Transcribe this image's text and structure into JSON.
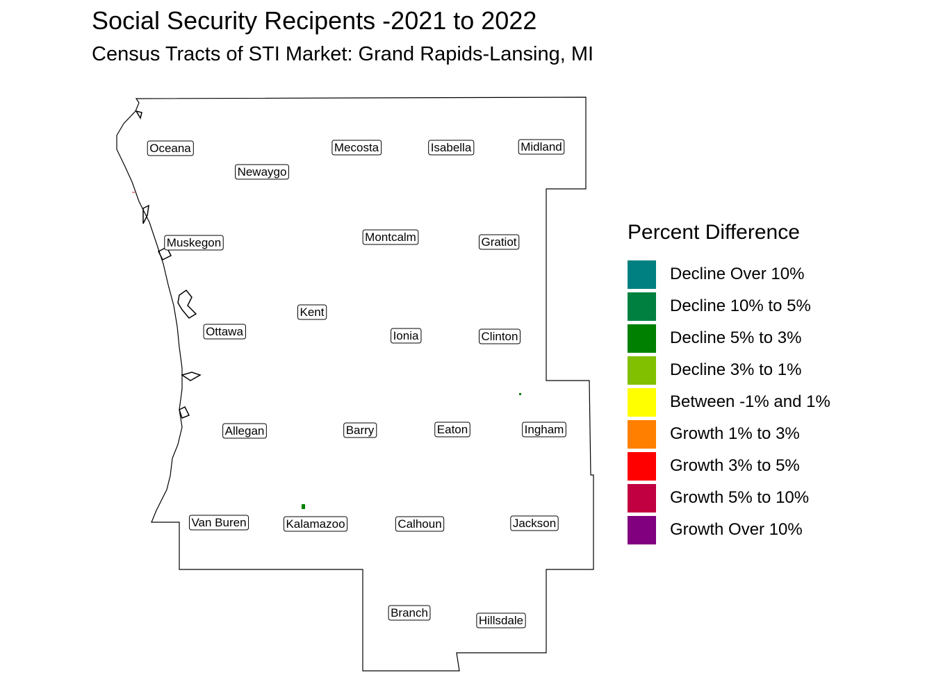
{
  "title": "Social Security Recipents -2021 to 2022",
  "subtitle": "Census Tracts of STI Market: Grand Rapids-Lansing, MI",
  "counties": [
    {
      "id": "oceana",
      "name": "Oceana"
    },
    {
      "id": "newaygo",
      "name": "Newaygo"
    },
    {
      "id": "mecosta",
      "name": "Mecosta"
    },
    {
      "id": "isabella",
      "name": "Isabella"
    },
    {
      "id": "midland",
      "name": "Midland"
    },
    {
      "id": "muskegon",
      "name": "Muskegon"
    },
    {
      "id": "montcalm",
      "name": "Montcalm"
    },
    {
      "id": "gratiot",
      "name": "Gratiot"
    },
    {
      "id": "kent",
      "name": "Kent"
    },
    {
      "id": "ottawa",
      "name": "Ottawa"
    },
    {
      "id": "ionia",
      "name": "Ionia"
    },
    {
      "id": "clinton",
      "name": "Clinton"
    },
    {
      "id": "allegan",
      "name": "Allegan"
    },
    {
      "id": "barry",
      "name": "Barry"
    },
    {
      "id": "eaton",
      "name": "Eaton"
    },
    {
      "id": "ingham",
      "name": "Ingham"
    },
    {
      "id": "van-buren",
      "name": "Van Buren"
    },
    {
      "id": "kalamazoo",
      "name": "Kalamazoo"
    },
    {
      "id": "calhoun",
      "name": "Calhoun"
    },
    {
      "id": "jackson",
      "name": "Jackson"
    },
    {
      "id": "branch",
      "name": "Branch"
    },
    {
      "id": "hillsdale",
      "name": "Hillsdale"
    }
  ],
  "colors": {
    "outline": "#000000",
    "county_border": "#e31a1c",
    "highlight_tract": "#008000"
  },
  "legend": {
    "title": "Percent Difference",
    "items": [
      {
        "label": "Decline Over 10%",
        "color": "#008080"
      },
      {
        "label": "Decline 10% to 5%",
        "color": "#008040"
      },
      {
        "label": "Decline 5% to 3%",
        "color": "#008000"
      },
      {
        "label": "Decline 3% to 1%",
        "color": "#80c000"
      },
      {
        "label": "Between -1% and 1%",
        "color": "#ffff00"
      },
      {
        "label": "Growth 1% to 3%",
        "color": "#ff8000"
      },
      {
        "label": "Growth 3% to 5%",
        "color": "#ff0000"
      },
      {
        "label": "Growth 5% to 10%",
        "color": "#c00040"
      },
      {
        "label": "Growth Over 10%",
        "color": "#800080"
      }
    ]
  }
}
